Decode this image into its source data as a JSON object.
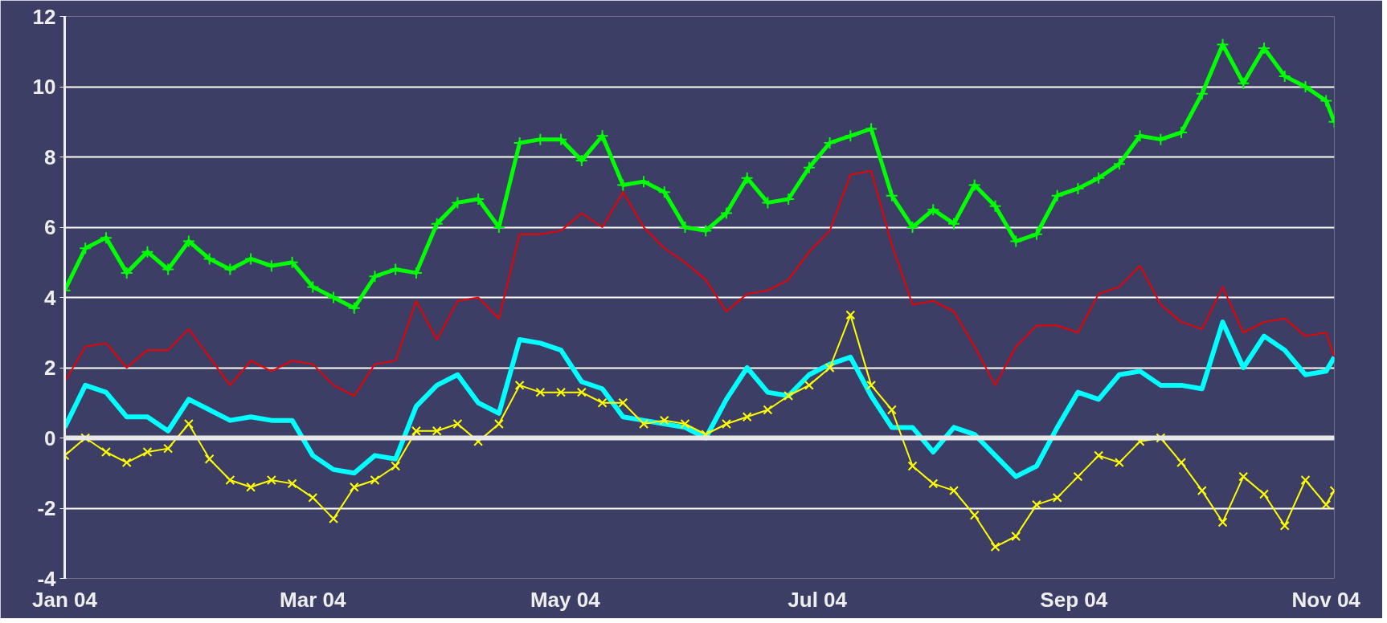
{
  "chart_data": {
    "type": "line",
    "x": [
      "2004-01-01",
      "2004-01-06",
      "2004-01-11",
      "2004-01-16",
      "2004-01-21",
      "2004-01-26",
      "2004-01-31",
      "2004-02-05",
      "2004-02-10",
      "2004-02-15",
      "2004-02-20",
      "2004-02-25",
      "2004-03-01",
      "2004-03-06",
      "2004-03-11",
      "2004-03-16",
      "2004-03-21",
      "2004-03-26",
      "2004-03-31",
      "2004-04-05",
      "2004-04-10",
      "2004-04-15",
      "2004-04-20",
      "2004-04-25",
      "2004-04-30",
      "2004-05-05",
      "2004-05-10",
      "2004-05-15",
      "2004-05-20",
      "2004-05-25",
      "2004-05-30",
      "2004-06-04",
      "2004-06-09",
      "2004-06-14",
      "2004-06-19",
      "2004-06-24",
      "2004-06-29",
      "2004-07-04",
      "2004-07-09",
      "2004-07-14",
      "2004-07-19",
      "2004-07-24",
      "2004-07-29",
      "2004-08-03",
      "2004-08-08",
      "2004-08-13",
      "2004-08-18",
      "2004-08-23",
      "2004-08-28",
      "2004-09-02",
      "2004-09-07",
      "2004-09-12",
      "2004-09-17",
      "2004-09-22",
      "2004-09-27",
      "2004-10-02",
      "2004-10-07",
      "2004-10-12",
      "2004-10-17",
      "2004-10-22",
      "2004-10-27",
      "2004-11-01",
      "2004-11-03"
    ],
    "series": [
      {
        "color": "#00ff00",
        "marker": "plus",
        "values": [
          4.2,
          5.4,
          5.7,
          4.7,
          5.3,
          4.8,
          5.6,
          5.1,
          4.8,
          5.1,
          4.9,
          5.0,
          4.3,
          4.0,
          3.7,
          4.6,
          4.8,
          4.7,
          6.1,
          6.7,
          6.8,
          6.0,
          8.4,
          8.5,
          8.5,
          7.9,
          8.6,
          7.2,
          7.3,
          7.0,
          6.0,
          5.9,
          6.4,
          7.4,
          6.7,
          6.8,
          7.7,
          8.4,
          8.6,
          8.8,
          6.9,
          6.0,
          6.5,
          6.1,
          7.2,
          6.6,
          5.6,
          5.8,
          6.9,
          7.1,
          7.4,
          7.8,
          8.6,
          8.5,
          8.7,
          9.8,
          11.2,
          10.1,
          11.1,
          10.3,
          10.0,
          9.6,
          9.0
        ]
      },
      {
        "color": "#ee0000",
        "marker": "none",
        "values": [
          1.6,
          2.6,
          2.7,
          2.0,
          2.5,
          2.5,
          3.1,
          2.3,
          1.5,
          2.2,
          1.9,
          2.2,
          2.1,
          1.5,
          1.2,
          2.1,
          2.2,
          3.9,
          2.8,
          3.9,
          4.0,
          3.4,
          5.8,
          5.8,
          5.9,
          6.4,
          6.0,
          7.0,
          6.0,
          5.4,
          5.0,
          4.5,
          3.6,
          4.1,
          4.2,
          4.5,
          5.3,
          5.9,
          7.5,
          7.6,
          5.5,
          3.8,
          3.9,
          3.6,
          2.6,
          1.5,
          2.6,
          3.2,
          3.2,
          3.0,
          4.1,
          4.3,
          4.9,
          3.8,
          3.3,
          3.1,
          4.3,
          3.0,
          3.3,
          3.4,
          2.9,
          3.0,
          2.3
        ]
      },
      {
        "color": "#00ffff",
        "marker": "none",
        "values": [
          0.3,
          1.5,
          1.3,
          0.6,
          0.6,
          0.2,
          1.1,
          0.8,
          0.5,
          0.6,
          0.5,
          0.5,
          -0.5,
          -0.9,
          -1.0,
          -0.5,
          -0.6,
          0.9,
          1.5,
          1.8,
          1.0,
          0.7,
          2.8,
          2.7,
          2.5,
          1.6,
          1.4,
          0.6,
          0.5,
          0.4,
          0.3,
          0.0,
          1.1,
          2.0,
          1.3,
          1.2,
          1.8,
          2.1,
          2.3,
          1.2,
          0.3,
          0.3,
          -0.4,
          0.3,
          0.1,
          -0.5,
          -1.1,
          -0.8,
          0.3,
          1.3,
          1.1,
          1.8,
          1.9,
          1.5,
          1.5,
          1.4,
          3.3,
          2.0,
          2.9,
          2.5,
          1.8,
          1.9,
          2.3
        ]
      },
      {
        "color": "#ffff00",
        "marker": "cross",
        "values": [
          -0.5,
          0.0,
          -0.4,
          -0.7,
          -0.4,
          -0.3,
          0.4,
          -0.6,
          -1.2,
          -1.4,
          -1.2,
          -1.3,
          -1.7,
          -2.3,
          -1.4,
          -1.2,
          -0.8,
          0.2,
          0.2,
          0.4,
          -0.1,
          0.4,
          1.5,
          1.3,
          1.3,
          1.3,
          1.0,
          1.0,
          0.4,
          0.5,
          0.4,
          0.1,
          0.4,
          0.6,
          0.8,
          1.2,
          1.5,
          2.0,
          3.5,
          1.5,
          0.8,
          -0.8,
          -1.3,
          -1.5,
          -2.2,
          -3.1,
          -2.8,
          -1.9,
          -1.7,
          -1.1,
          -0.5,
          -0.7,
          -0.1,
          0.0,
          -0.7,
          -1.5,
          -2.4,
          -1.1,
          -1.6,
          -2.5,
          -1.2,
          -1.9,
          -1.5
        ]
      }
    ],
    "xlim": [
      "2004-01-01",
      "2004-11-03"
    ],
    "xticks": [
      {
        "value": "2004-01-01",
        "label": "Jan 04"
      },
      {
        "value": "2004-03-01",
        "label": "Mar 04"
      },
      {
        "value": "2004-05-01",
        "label": "May 04"
      },
      {
        "value": "2004-07-01",
        "label": "Jul 04"
      },
      {
        "value": "2004-09-01",
        "label": "Sep 04"
      },
      {
        "value": "2004-11-01",
        "label": "Nov 04"
      }
    ],
    "ylim": [
      -4,
      12
    ],
    "yticks": [
      -4,
      -2,
      0,
      2,
      4,
      6,
      8,
      10,
      12
    ],
    "ref_lines": [
      {
        "axis": "y",
        "value": 0,
        "color": "#e8e8e8"
      }
    ],
    "grid": "y"
  }
}
